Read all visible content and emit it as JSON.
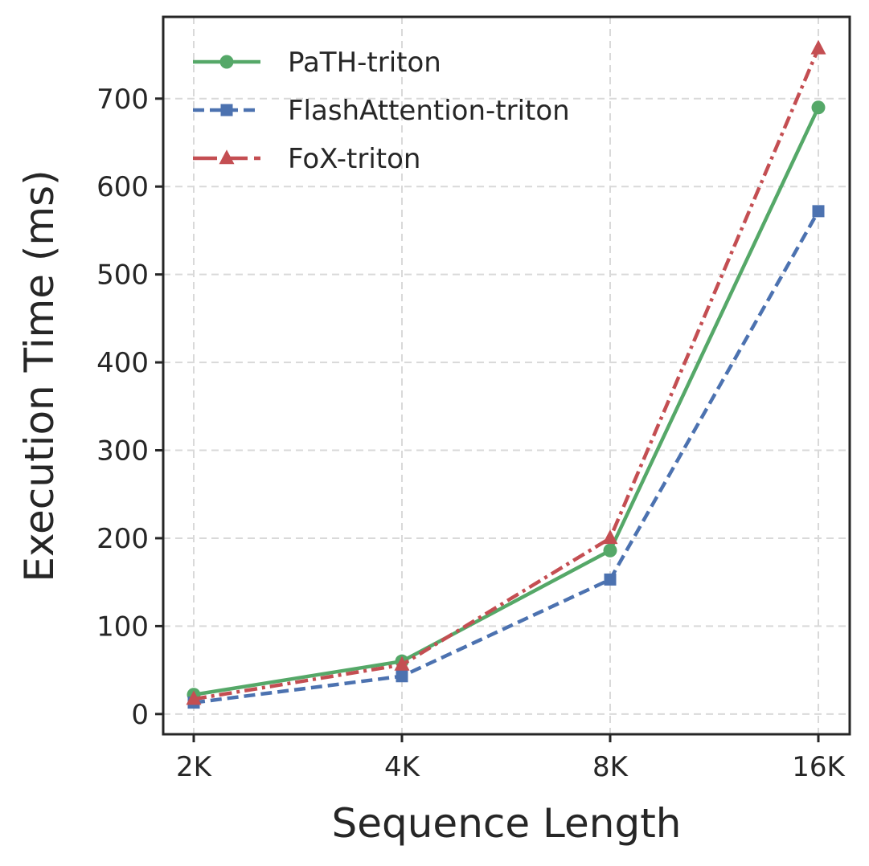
{
  "chart_data": {
    "type": "line",
    "x": [
      "2K",
      "4K",
      "8K",
      "16K"
    ],
    "xlabel": "Sequence Length",
    "ylabel": "Execution Time (ms)",
    "ylim": [
      -23,
      793
    ],
    "yticks": [
      0,
      100,
      200,
      300,
      400,
      500,
      600,
      700
    ],
    "grid": true,
    "legend_position": "top-left",
    "series": [
      {
        "name": "PaTH-triton",
        "values": [
          22,
          60,
          186,
          690
        ],
        "color": "#55a868",
        "linestyle": "solid",
        "marker": "circle"
      },
      {
        "name": "FlashAttention-triton",
        "values": [
          13,
          43,
          153,
          572
        ],
        "color": "#4c72b0",
        "linestyle": "dashed",
        "marker": "square"
      },
      {
        "name": "FoX-triton",
        "values": [
          17,
          56,
          200,
          757
        ],
        "color": "#c44e52",
        "linestyle": "dashdot",
        "marker": "triangle"
      }
    ]
  }
}
